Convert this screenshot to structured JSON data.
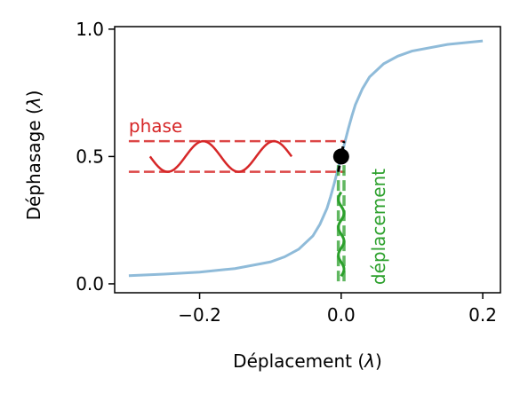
{
  "chart_data": {
    "type": "line",
    "title": "",
    "xlabel_parts": [
      "Déplacement (",
      "λ",
      ")"
    ],
    "ylabel_parts": [
      "Déphasage (",
      "λ",
      ")"
    ],
    "xlim": [
      -0.32,
      0.225
    ],
    "ylim": [
      -0.035,
      1.01
    ],
    "x_ticks": [
      {
        "value": -0.2,
        "label": "−0.2"
      },
      {
        "value": 0.0,
        "label": "0.0"
      },
      {
        "value": 0.2,
        "label": "0.2"
      }
    ],
    "y_ticks": [
      {
        "value": 0.0,
        "label": "0.0"
      },
      {
        "value": 0.5,
        "label": "0.5"
      },
      {
        "value": 1.0,
        "label": "1.0"
      }
    ],
    "grid": false,
    "curve": {
      "color": "#8fbbd9",
      "x": [
        -0.3,
        -0.25,
        -0.2,
        -0.15,
        -0.1,
        -0.08,
        -0.06,
        -0.04,
        -0.03,
        -0.02,
        -0.015,
        -0.01,
        -0.005,
        0.0,
        0.005,
        0.01,
        0.015,
        0.02,
        0.03,
        0.04,
        0.06,
        0.08,
        0.1,
        0.15,
        0.2
      ],
      "y": [
        0.032,
        0.038,
        0.046,
        0.06,
        0.086,
        0.106,
        0.136,
        0.188,
        0.234,
        0.297,
        0.342,
        0.392,
        0.446,
        0.5,
        0.554,
        0.608,
        0.658,
        0.703,
        0.766,
        0.812,
        0.864,
        0.894,
        0.914,
        0.94,
        0.954
      ]
    },
    "marker_point": {
      "x": 0.0,
      "y": 0.5,
      "color": "#000000"
    },
    "tangent": {
      "x": [
        -0.004,
        0.004
      ],
      "y": [
        0.44,
        0.56
      ],
      "color": "#000000"
    },
    "phase_annotation": {
      "label": "phase",
      "color": "#d62728",
      "band": {
        "x": [
          -0.3,
          0.005
        ],
        "y_low": 0.44,
        "y_high": 0.56
      },
      "wave": {
        "x_start": -0.27,
        "x_end": -0.07,
        "center": 0.5,
        "amplitude": 0.06,
        "periods": 2
      }
    },
    "displacement_annotation": {
      "label": "déplacement",
      "color": "#2ca02c",
      "band": {
        "y": [
          0.01,
          0.5
        ],
        "x_left": -0.004,
        "x_right": 0.004
      },
      "wave": {
        "y_start": 0.03,
        "y_end": 0.36,
        "center": 0.0,
        "amplitude": 0.004,
        "periods": 3
      }
    }
  }
}
